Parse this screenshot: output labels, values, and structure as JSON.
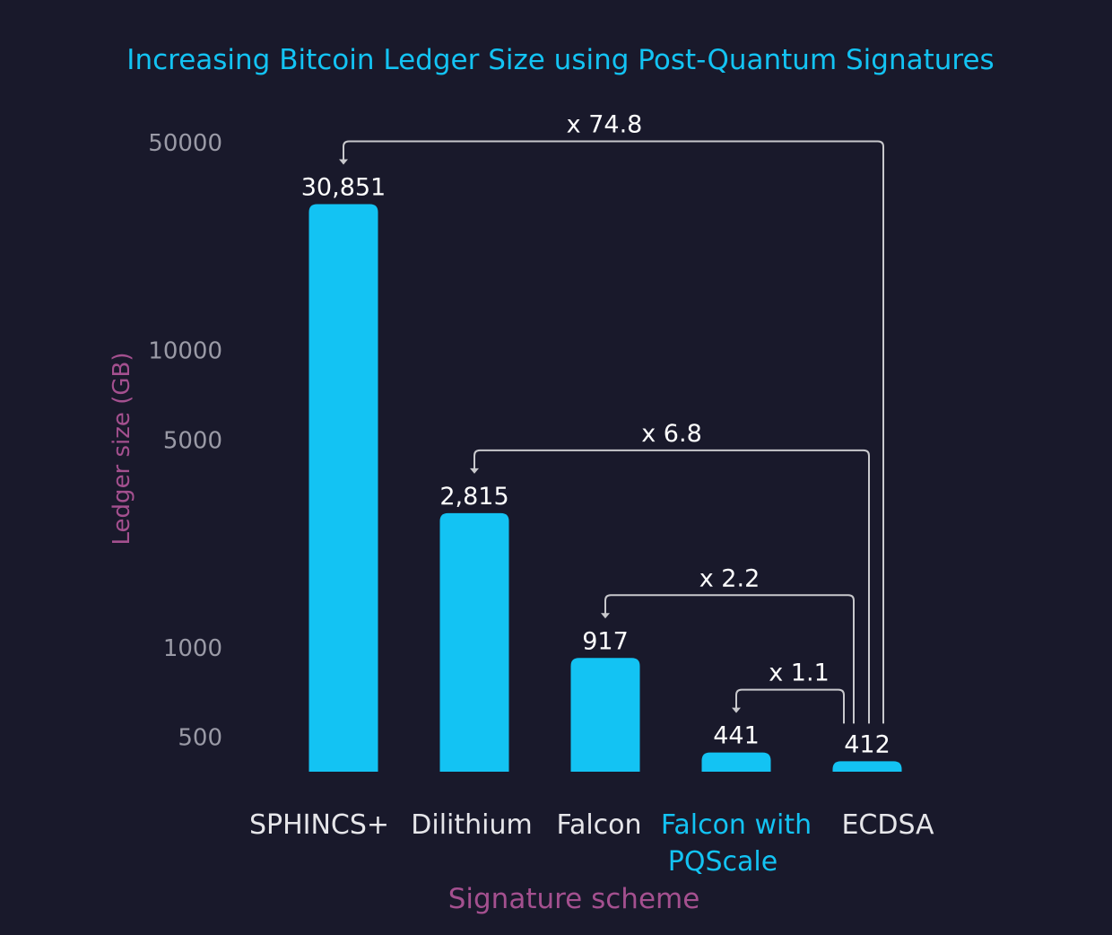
{
  "chart_data": {
    "type": "bar",
    "title": "Increasing Bitcoin Ledger Size using Post-Quantum Signatures",
    "xlabel": "Signature scheme",
    "ylabel": "Ledger size (GB)",
    "yscale": "log",
    "ylim": [
      380,
      50000
    ],
    "yticks": [
      500,
      1000,
      5000,
      10000,
      50000
    ],
    "ytick_labels": [
      "500",
      "1000",
      "5000",
      "10000",
      "50000"
    ],
    "grid": false,
    "categories": [
      "SPHINCS+",
      "Dilithium",
      "Falcon",
      "Falcon with PQScale",
      "ECDSA"
    ],
    "category_lines": [
      [
        "SPHINCS+"
      ],
      [
        "Dilithium"
      ],
      [
        "Falcon"
      ],
      [
        "Falcon with",
        "PQScale"
      ],
      [
        "ECDSA"
      ]
    ],
    "highlighted_category": "Falcon with PQScale",
    "values": [
      30851,
      2815,
      917,
      441,
      412
    ],
    "data_labels": [
      "30,851",
      "2,815",
      "917",
      "441",
      "412"
    ],
    "annotations": [
      {
        "from": "ECDSA",
        "to": "SPHINCS+",
        "label": "x 74.8"
      },
      {
        "from": "ECDSA",
        "to": "Dilithium",
        "label": "x 6.8"
      },
      {
        "from": "ECDSA",
        "to": "Falcon",
        "label": "x 2.2"
      },
      {
        "from": "ECDSA",
        "to": "Falcon with PQScale",
        "label": "x 1.1"
      }
    ],
    "colors": {
      "background": "#19192b",
      "bar": "#13c3f3",
      "title": "#13c3f3",
      "axis_label": "#a4508f",
      "tick_label": "#9a9aa6",
      "category_label": "#e6e6ea",
      "highlight_label": "#13c3f3",
      "data_label": "#ffffff",
      "bracket": "#c8c8cc"
    }
  }
}
